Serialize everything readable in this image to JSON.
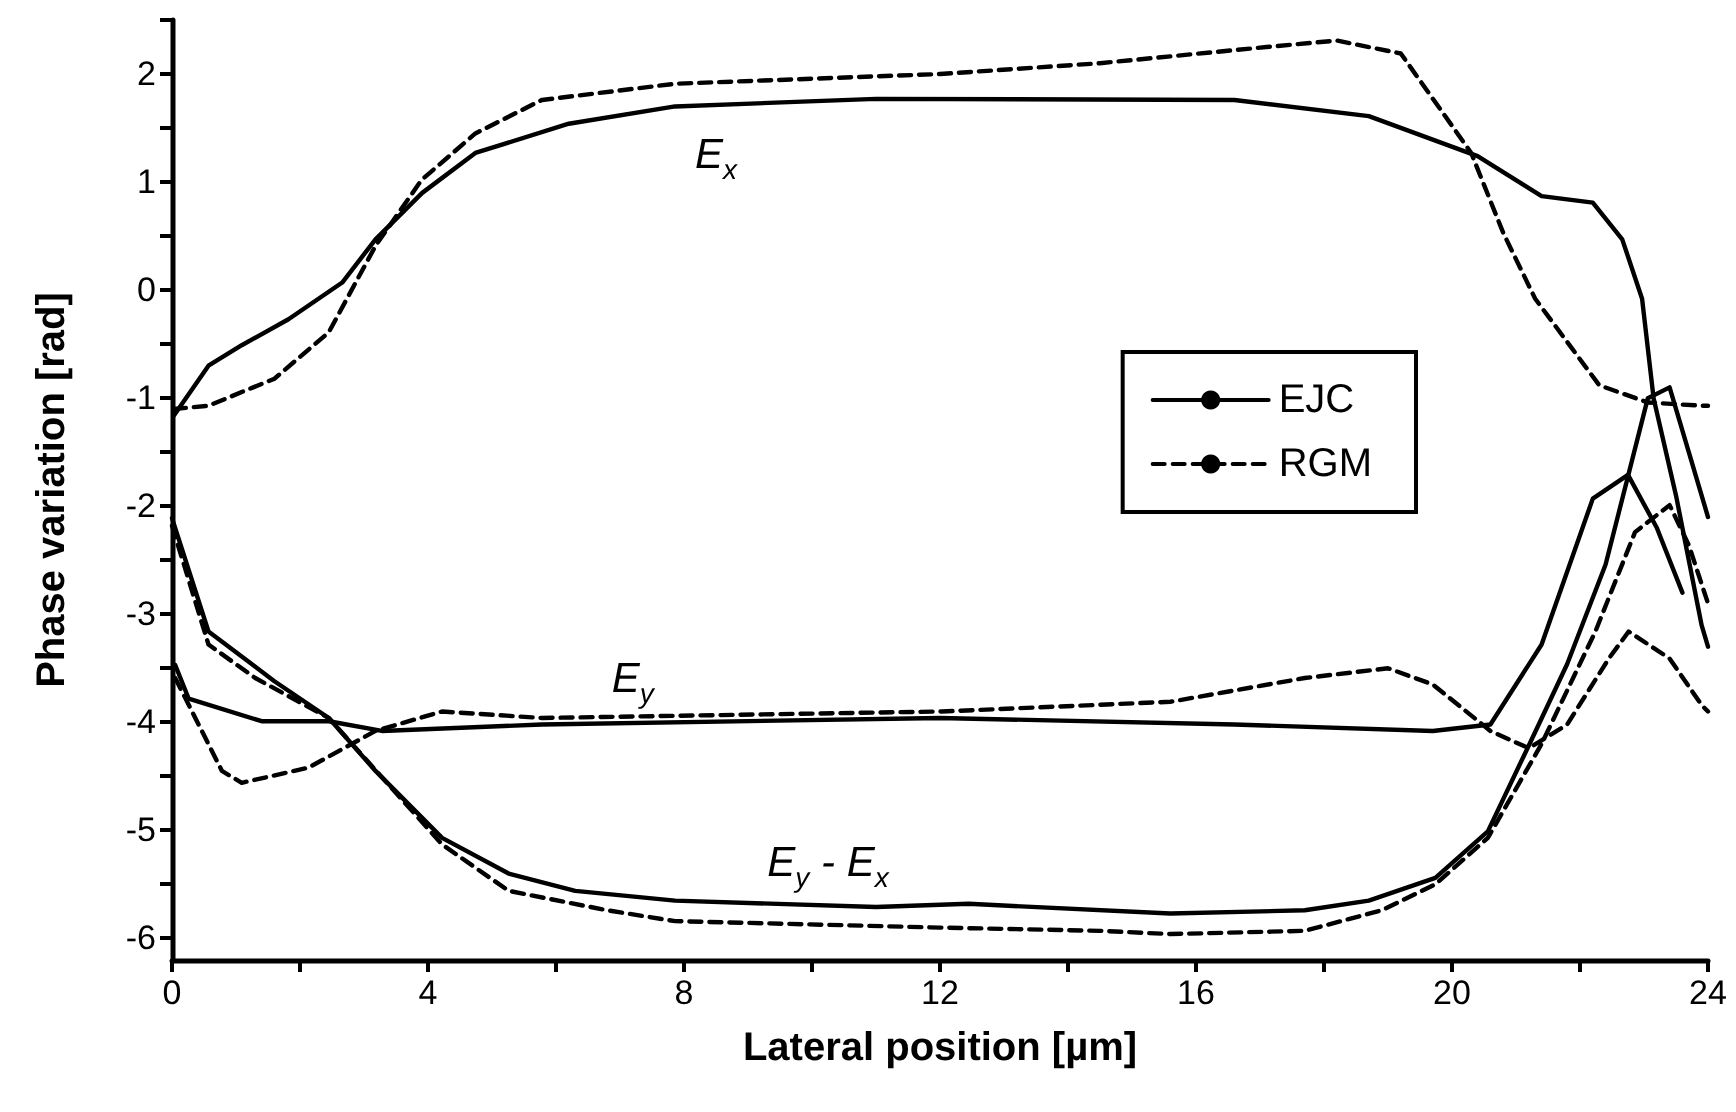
{
  "chart_data": {
    "type": "line",
    "xlabel": "Lateral position [µm]",
    "ylabel": "Phase variation [rad]",
    "xlim": [
      0,
      24
    ],
    "ylim": [
      -6.2,
      2.5
    ],
    "xticks": [
      0,
      {
        "value": 2,
        "label": null
      },
      4,
      {
        "value": 6,
        "label": null
      },
      8,
      {
        "value": 10,
        "label": null
      },
      12,
      {
        "value": 14,
        "label": null
      },
      16,
      {
        "value": 18,
        "label": null
      },
      20,
      {
        "value": 22,
        "label": null
      },
      24
    ],
    "yticks": [
      -6,
      {
        "value": -5.5,
        "label": null
      },
      -5,
      {
        "value": -4.5,
        "label": null
      },
      -4,
      {
        "value": -3.5,
        "label": null
      },
      -3,
      {
        "value": -2.5,
        "label": null
      },
      -2,
      {
        "value": -1.5,
        "label": null
      },
      -1,
      {
        "value": -0.5,
        "label": null
      },
      0,
      {
        "value": 0.5,
        "label": null
      },
      1,
      {
        "value": 1.5,
        "label": null
      },
      2,
      {
        "value": 2.5,
        "label": null
      }
    ],
    "grid": false,
    "legend": "right",
    "marker": "none",
    "annotations": [
      "E$_{x}$",
      "E$_{y}$",
      "E$_{y}$ - E$_{x}$"
    ],
    "series": [
      {
        "name": "EJC",
        "color": "#000000",
        "line_style": "solid",
        "x": [
          0.03,
          0.57,
          1.09,
          1.82,
          2.66,
          3.18,
          3.91,
          4.74,
          6.2,
          7.86,
          11.0,
          16.6,
          18.7,
          20.4,
          21.4,
          22.2,
          22.66,
          22.97,
          23.15,
          23.5,
          23.9,
          24
        ],
        "values": [
          -1.16,
          -0.7,
          -0.51,
          -0.27,
          0.07,
          0.47,
          0.9,
          1.27,
          1.54,
          1.7,
          1.77,
          1.76,
          1.61,
          1.24,
          0.87,
          0.81,
          0.47,
          -0.08,
          -1.0,
          -1.9,
          -3.1,
          -3.3
        ]
      },
      {
        "name": "RGM",
        "color": "#000000",
        "line_style": "dashed",
        "x": [
          0.03,
          0.57,
          1.6,
          2.45,
          3.18,
          3.9,
          4.74,
          5.78,
          7.86,
          12.0,
          14.5,
          17.1,
          18.2,
          19.2,
          20.3,
          20.8,
          21.3,
          22.3,
          23.06,
          23.9,
          24
        ],
        "values": [
          -1.1,
          -1.07,
          -0.82,
          -0.39,
          0.41,
          1.02,
          1.45,
          1.76,
          1.91,
          2.0,
          2.1,
          2.25,
          2.31,
          2.19,
          1.27,
          0.53,
          -0.08,
          -0.88,
          -1.04,
          -1.07,
          -1.07
        ]
      },
      {
        "color": "#000000",
        "line_style": "solid",
        "x": [
          0.05,
          0.26,
          1.4,
          2.45,
          3.28,
          5.78,
          12.0,
          16.6,
          19.7,
          20.6,
          21.4,
          22.2,
          22.75,
          23.2,
          23.6
        ],
        "values": [
          -3.47,
          -3.78,
          -3.99,
          -3.99,
          -4.08,
          -4.02,
          -3.96,
          -4.02,
          -4.08,
          -4.02,
          -3.28,
          -1.93,
          -1.71,
          -2.2,
          -2.8
        ]
      },
      {
        "color": "#000000",
        "line_style": "dashed",
        "x": [
          0.05,
          0.78,
          1.09,
          2.13,
          3.18,
          4.22,
          5.78,
          12.03,
          15.6,
          17.7,
          19.0,
          19.7,
          20.6,
          21.2,
          21.8,
          22.45,
          22.76,
          23.4,
          23.9,
          24
        ],
        "values": [
          -3.59,
          -4.45,
          -4.56,
          -4.42,
          -4.08,
          -3.9,
          -3.96,
          -3.9,
          -3.81,
          -3.59,
          -3.5,
          -3.65,
          -4.08,
          -4.24,
          -4.02,
          -3.41,
          -3.16,
          -3.41,
          -3.84,
          -3.9
        ]
      },
      {
        "color": "#000000",
        "line_style": "solid",
        "x": [
          0,
          0.57,
          1.6,
          2.45,
          3.18,
          4.22,
          5.26,
          6.3,
          7.86,
          11.0,
          12.45,
          15.6,
          17.7,
          18.7,
          19.74,
          20.56,
          21.3,
          21.8,
          22.4,
          23.06,
          23.4,
          23.7,
          24
        ],
        "values": [
          -2.11,
          -3.16,
          -3.62,
          -3.96,
          -4.45,
          -5.07,
          -5.4,
          -5.56,
          -5.65,
          -5.71,
          -5.68,
          -5.77,
          -5.74,
          -5.65,
          -5.44,
          -5.01,
          -4.09,
          -3.46,
          -2.54,
          -1.0,
          -0.9,
          -1.5,
          -2.1
        ]
      },
      {
        "color": "#000000",
        "line_style": "dashed",
        "x": [
          0,
          0.57,
          1.3,
          2.45,
          4.22,
          5.26,
          6.8,
          7.86,
          12.0,
          14.5,
          15.6,
          17.7,
          18.9,
          19.74,
          20.56,
          21.4,
          22.24,
          22.86,
          23.4,
          23.7,
          23.9,
          24
        ],
        "values": [
          -2.18,
          -3.28,
          -3.59,
          -3.96,
          -5.13,
          -5.56,
          -5.74,
          -5.84,
          -5.9,
          -5.93,
          -5.96,
          -5.93,
          -5.74,
          -5.5,
          -5.07,
          -4.2,
          -3.16,
          -2.24,
          -1.99,
          -2.36,
          -2.72,
          -2.9
        ]
      }
    ]
  }
}
